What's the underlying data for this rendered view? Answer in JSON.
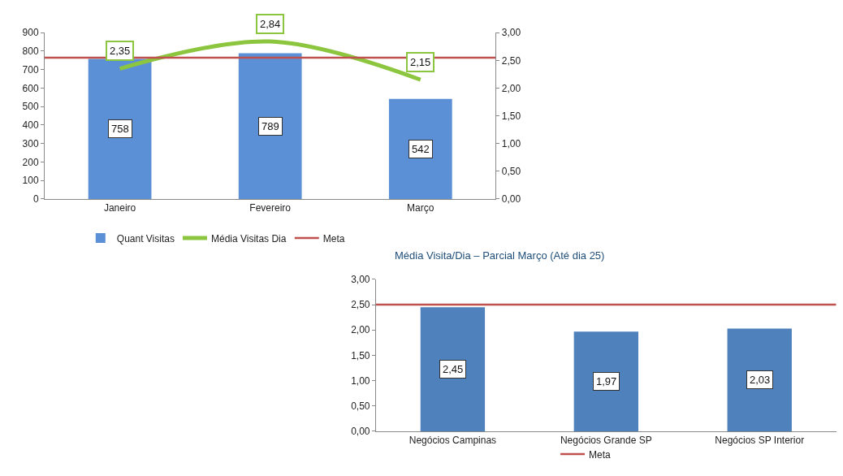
{
  "chart_data": [
    {
      "type": "bar",
      "categories": [
        "Janeiro",
        "Fevereiro",
        "Março"
      ],
      "series": [
        {
          "name": "Quant Visitas",
          "type": "bar",
          "color": "#5b8fd6",
          "values": [
            758,
            789,
            542
          ],
          "value_labels": [
            "758",
            "789",
            "542"
          ]
        },
        {
          "name": "Média Visitas Dia",
          "type": "line",
          "axis": "y2",
          "color": "#8cc63f",
          "values": [
            2.35,
            2.84,
            2.15
          ],
          "value_labels": [
            "2,35",
            "2,84",
            "2,15"
          ]
        }
      ],
      "ylim": [
        0,
        900
      ],
      "yticks": [
        0,
        100,
        200,
        300,
        400,
        500,
        600,
        700,
        800,
        900
      ],
      "y2lim": [
        0,
        3
      ],
      "y2ticks": [
        {
          "value": 0,
          "label": "0,00"
        },
        {
          "value": 0.5,
          "label": "0,50"
        },
        {
          "value": 1,
          "label": "1,00"
        },
        {
          "value": 1.5,
          "label": "1,50"
        },
        {
          "value": 2,
          "label": "2,00"
        },
        {
          "value": 2.5,
          "label": "2,50"
        },
        {
          "value": 3,
          "label": "3,00"
        }
      ],
      "ref_lines": [
        {
          "axis": "y2",
          "value": 2.55,
          "label": "Meta",
          "color": "#c0504d"
        }
      ],
      "legend": "bottom"
    },
    {
      "type": "bar",
      "title": "Média Visita/Dia – Parcial Março (Até dia 25)",
      "categories": [
        "Negócios Campinas",
        "Negócios Grande SP",
        "Negócios SP Interior"
      ],
      "values": [
        2.45,
        1.97,
        2.03
      ],
      "color": "#4f81bd",
      "value_labels": [
        "2,45",
        "1,97",
        "2,03"
      ],
      "ylim": [
        0,
        3
      ],
      "yticks": [
        {
          "value": 0,
          "label": "0,00"
        },
        {
          "value": 0.5,
          "label": "0,50"
        },
        {
          "value": 1,
          "label": "1,00"
        },
        {
          "value": 1.5,
          "label": "1,50"
        },
        {
          "value": 2,
          "label": "2,00"
        },
        {
          "value": 2.5,
          "label": "2,50"
        },
        {
          "value": 3,
          "label": "3,00"
        }
      ],
      "ref_lines": [
        {
          "axis": "y",
          "value": 2.5,
          "label": "Meta",
          "color": "#c0504d"
        }
      ],
      "legend": "bottom"
    }
  ]
}
